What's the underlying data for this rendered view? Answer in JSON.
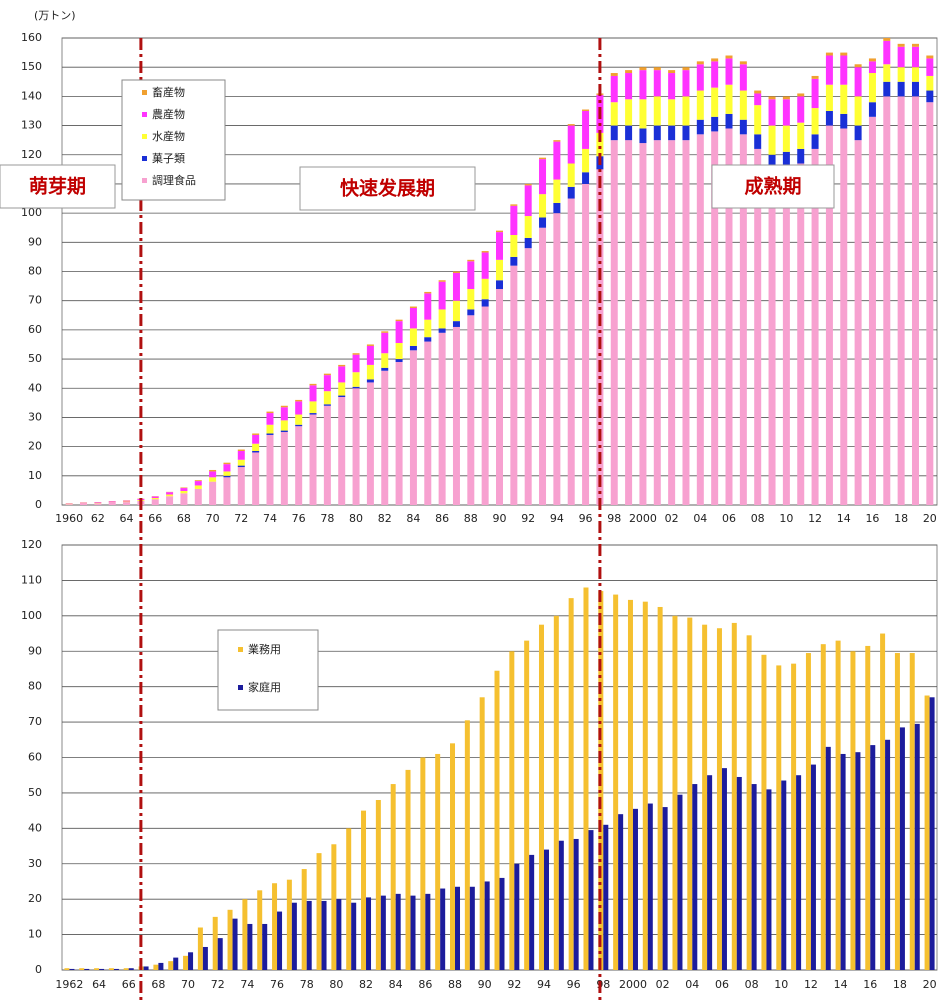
{
  "chart_data": [
    {
      "type": "bar",
      "stacked": true,
      "y_label": "(万トン)",
      "annotations": [
        "萌芽期",
        "快速发展期",
        "成熟期"
      ],
      "phase_boundaries": [
        1965,
        1997
      ],
      "years": [
        1960,
        1961,
        1962,
        1963,
        1964,
        1965,
        1966,
        1967,
        1968,
        1969,
        1970,
        1971,
        1972,
        1973,
        1974,
        1975,
        1976,
        1977,
        1978,
        1979,
        1980,
        1981,
        1982,
        1983,
        1984,
        1985,
        1986,
        1987,
        1988,
        1989,
        1990,
        1991,
        1992,
        1993,
        1994,
        1995,
        1996,
        1997,
        1998,
        1999,
        2000,
        2001,
        2002,
        2003,
        2004,
        2005,
        2006,
        2007,
        2008,
        2009,
        2010,
        2011,
        2012,
        2013,
        2014,
        2015,
        2016,
        2017,
        2018,
        2019,
        2020
      ],
      "categories": [
        "1960",
        null,
        "62",
        null,
        "64",
        null,
        "66",
        null,
        "68",
        null,
        "70",
        null,
        "72",
        null,
        "74",
        null,
        "76",
        null,
        "78",
        null,
        "80",
        null,
        "82",
        null,
        "84",
        null,
        "86",
        null,
        "88",
        null,
        "90",
        null,
        "92",
        null,
        "94",
        null,
        "96",
        null,
        "98",
        null,
        "2000",
        null,
        "02",
        null,
        "04",
        null,
        "06",
        null,
        "08",
        null,
        "10",
        null,
        "12",
        null,
        "14",
        null,
        "16",
        null,
        "18",
        null,
        "20"
      ],
      "series": [
        {
          "name": "畜産物",
          "color": "#f0a030",
          "values": [
            0.1,
            0.1,
            0.1,
            0.1,
            0.1,
            0.1,
            0.1,
            0.1,
            0.2,
            0.3,
            0.5,
            0.5,
            0.5,
            0.5,
            0.5,
            0.5,
            0.5,
            0.5,
            0.5,
            0.5,
            0.5,
            0.5,
            0.5,
            0.5,
            0.5,
            0.5,
            0.5,
            0.5,
            0.5,
            0.5,
            0.5,
            0.5,
            0.5,
            0.5,
            0.5,
            0.5,
            0.5,
            0.5,
            1,
            1,
            1,
            1,
            1,
            1,
            1,
            1,
            1,
            1,
            1,
            1,
            1,
            1,
            1,
            1,
            1,
            1,
            1,
            1,
            1,
            1,
            1
          ]
        },
        {
          "name": "農産物",
          "color": "#ff33ff",
          "values": [
            0.1,
            0.2,
            0.2,
            0.3,
            0.3,
            0.4,
            0.5,
            0.8,
            1,
            1.5,
            2,
            2.5,
            3,
            3,
            4,
            4.5,
            4.5,
            5.5,
            5.5,
            5.5,
            6,
            6.5,
            7,
            7.5,
            7,
            9,
            9.5,
            9.5,
            9.5,
            9,
            9.5,
            10,
            10.5,
            12,
            13,
            13,
            13,
            13,
            9,
            9,
            10,
            9,
            9,
            9,
            9,
            9,
            9,
            9,
            4,
            9,
            9,
            9,
            10,
            10,
            10,
            10,
            4,
            8,
            7,
            7,
            6
          ]
        },
        {
          "name": "水産物",
          "color": "#ffff33",
          "values": [
            0.1,
            0.1,
            0.1,
            0.1,
            0.2,
            0.3,
            0.4,
            0.6,
            0.8,
            1.2,
            1.5,
            1.5,
            2,
            2.5,
            3,
            3.5,
            3.5,
            4,
            4.5,
            4.5,
            5,
            5,
            5,
            5.5,
            6,
            6,
            6.5,
            7,
            7,
            7,
            7,
            7.5,
            7.5,
            8,
            8,
            8,
            8,
            8,
            8,
            9,
            10,
            10,
            9,
            10,
            10,
            10,
            10,
            10,
            10,
            10,
            9,
            9,
            9,
            9,
            10,
            10,
            10,
            6,
            5,
            5,
            5
          ]
        },
        {
          "name": "菓子類",
          "color": "#1a2fd6",
          "values": [
            0,
            0,
            0,
            0,
            0,
            0,
            0,
            0,
            0,
            0,
            0,
            0.5,
            0.5,
            0.5,
            0.5,
            0.5,
            0.5,
            0.5,
            0.5,
            0.5,
            0.5,
            1,
            1,
            1,
            1.5,
            1.5,
            1.5,
            2,
            2,
            2.5,
            3,
            3,
            3.5,
            3.5,
            3.5,
            4,
            4,
            4.5,
            5,
            5,
            5,
            5,
            5,
            5,
            5,
            5,
            5,
            5,
            5,
            5,
            5,
            5,
            5,
            5,
            5,
            5,
            5,
            5,
            5,
            5,
            4
          ]
        },
        {
          "name": "調理食品",
          "color": "#f7a1d0",
          "values": [
            0.3,
            0.5,
            0.6,
            0.8,
            1,
            1.4,
            2,
            3,
            4,
            5.5,
            8,
            9.5,
            13,
            18,
            24,
            25,
            27,
            31,
            34,
            37,
            40,
            42,
            46,
            49,
            53,
            56,
            59,
            61,
            65,
            68,
            74,
            82,
            88,
            95,
            100,
            105,
            110,
            115,
            125,
            125,
            124,
            125,
            125,
            125,
            127,
            128,
            129,
            127,
            122,
            115,
            116,
            117,
            122,
            130,
            129,
            125,
            133,
            140,
            140,
            140,
            138
          ]
        }
      ],
      "ylim": [
        0,
        160
      ],
      "yticks": [
        0,
        10,
        20,
        30,
        40,
        50,
        60,
        70,
        80,
        90,
        100,
        110,
        120,
        130,
        140,
        150,
        160
      ],
      "grid": true
    },
    {
      "type": "bar",
      "stacked": false,
      "categories": [
        "1962",
        null,
        "64",
        null,
        "66",
        null,
        "68",
        null,
        "70",
        null,
        "72",
        null,
        "74",
        null,
        "76",
        null,
        "78",
        null,
        "80",
        null,
        "82",
        null,
        "84",
        null,
        "86",
        null,
        "88",
        null,
        "90",
        null,
        "92",
        null,
        "94",
        null,
        "96",
        null,
        "98",
        null,
        "2000",
        null,
        "02",
        null,
        "04",
        null,
        "06",
        null,
        "08",
        null,
        "10",
        null,
        "12",
        null,
        "14",
        null,
        "16",
        null,
        "18",
        null,
        "20"
      ],
      "series": [
        {
          "name": "業務用",
          "color": "#f5c030",
          "values": [
            0.5,
            0.5,
            0.5,
            0.5,
            0.5,
            1,
            1.5,
            2.5,
            4,
            12,
            15,
            17,
            20,
            22.5,
            24.5,
            25.5,
            28.5,
            33,
            35.5,
            40,
            45,
            48,
            52.5,
            56.5,
            60,
            61,
            64,
            70.5,
            77,
            84.5,
            90,
            93,
            97.5,
            100,
            105,
            108,
            107,
            106,
            104.5,
            104,
            102.5,
            100,
            99.5,
            97.5,
            96.5,
            98,
            94.5,
            89,
            86,
            86.5,
            89.5,
            92,
            93,
            90,
            91.5,
            95,
            89.5,
            89.5,
            77.5
          ]
        },
        {
          "name": "家庭用",
          "color": "#1c1c9c",
          "values": [
            0.3,
            0.3,
            0.3,
            0.3,
            0.5,
            1,
            2,
            3.5,
            5,
            6.5,
            9,
            14.5,
            13,
            13,
            16.5,
            19,
            19.5,
            19.5,
            20,
            19,
            20.5,
            21,
            21.5,
            21,
            21.5,
            23,
            23.5,
            23.5,
            25,
            26,
            30,
            32.5,
            34,
            36.5,
            37,
            39.5,
            41,
            44,
            45.5,
            47,
            46,
            49.5,
            52.5,
            55,
            57,
            54.5,
            52.5,
            51,
            53.5,
            55,
            58,
            63,
            61,
            61.5,
            63.5,
            65,
            68.5,
            69.5,
            77
          ]
        }
      ],
      "ylim": [
        0,
        120
      ],
      "yticks": [
        0,
        10,
        20,
        30,
        40,
        50,
        60,
        70,
        80,
        90,
        100,
        110,
        120
      ],
      "grid": true
    }
  ]
}
